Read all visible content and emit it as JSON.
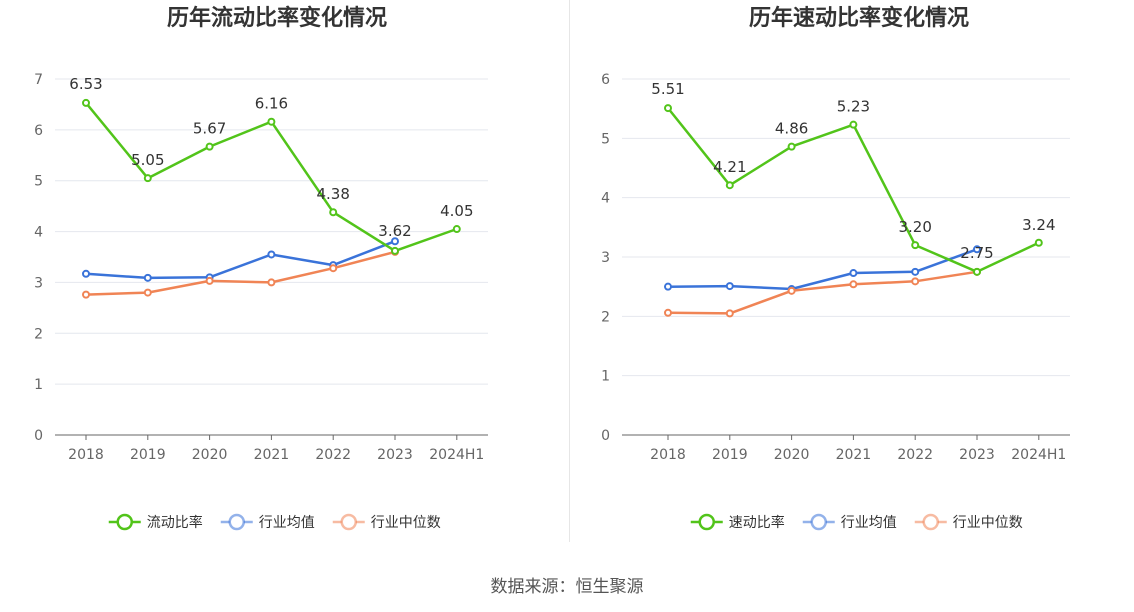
{
  "source": {
    "label": "数据来源：",
    "name": "恒生聚源"
  },
  "chart_data": [
    {
      "type": "line",
      "title": "历年流动比率变化情况",
      "categories": [
        "2018",
        "2019",
        "2020",
        "2021",
        "2022",
        "2023",
        "2024H1"
      ],
      "ylim": [
        0,
        7
      ],
      "yticks": [
        0,
        1,
        2,
        3,
        4,
        5,
        6,
        7
      ],
      "grid": true,
      "legend_position": "bottom",
      "series": [
        {
          "name": "流动比率",
          "color": "#52c41a",
          "values": [
            6.53,
            5.05,
            5.67,
            6.16,
            4.38,
            3.62,
            4.05
          ],
          "labels": [
            "6.53",
            "5.05",
            "5.67",
            "6.16",
            "4.38",
            "3.62",
            "4.05"
          ]
        },
        {
          "name": "行业均值",
          "color": "#3a73d9",
          "values": [
            3.17,
            3.09,
            3.1,
            3.55,
            3.34,
            3.81,
            null
          ]
        },
        {
          "name": "行业中位数",
          "color": "#f08455",
          "values": [
            2.76,
            2.8,
            3.03,
            3.0,
            3.28,
            3.6,
            null
          ]
        }
      ]
    },
    {
      "type": "line",
      "title": "历年速动比率变化情况",
      "categories": [
        "2018",
        "2019",
        "2020",
        "2021",
        "2022",
        "2023",
        "2024H1"
      ],
      "ylim": [
        0,
        6
      ],
      "yticks": [
        0,
        1,
        2,
        3,
        4,
        5,
        6
      ],
      "grid": true,
      "legend_position": "bottom",
      "series": [
        {
          "name": "速动比率",
          "color": "#52c41a",
          "values": [
            5.51,
            4.21,
            4.86,
            5.23,
            3.2,
            2.75,
            3.24
          ],
          "labels": [
            "5.51",
            "4.21",
            "4.86",
            "5.23",
            "3.20",
            "2.75",
            "3.24"
          ]
        },
        {
          "name": "行业均值",
          "color": "#3a73d9",
          "values": [
            2.5,
            2.51,
            2.46,
            2.73,
            2.75,
            3.13,
            null
          ]
        },
        {
          "name": "行业中位数",
          "color": "#f08455",
          "values": [
            2.06,
            2.05,
            2.43,
            2.54,
            2.59,
            2.75,
            null
          ]
        }
      ]
    }
  ]
}
